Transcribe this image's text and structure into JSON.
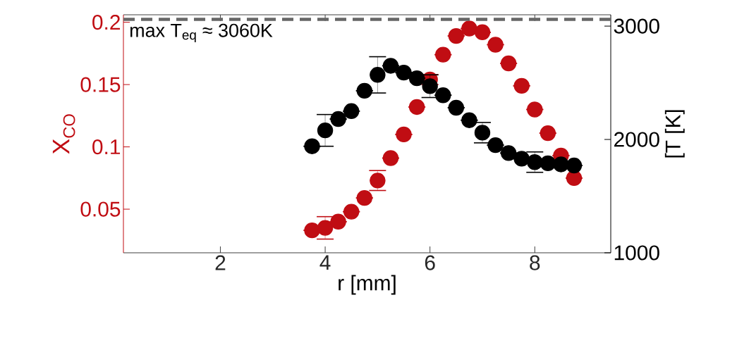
{
  "chart_data": {
    "type": "scatter",
    "xlabel": "r [mm]",
    "ylabel": "X$_{CO}$",
    "y2label": "[T [K]",
    "x": [
      3.75,
      4.0,
      4.25,
      4.5,
      4.75,
      5.0,
      5.25,
      5.5,
      5.75,
      6.0,
      6.25,
      6.5,
      6.75,
      7.0,
      7.25,
      7.5,
      7.75,
      8.0,
      8.25,
      8.5,
      8.75
    ],
    "series": [
      {
        "color": "#c00d13",
        "values": [
          0.033,
          0.035,
          0.04,
          0.048,
          0.059,
          0.073,
          0.091,
          0.11,
          0.132,
          0.154,
          0.174,
          0.189,
          0.195,
          0.192,
          0.182,
          0.167,
          0.149,
          0.13,
          0.111,
          0.093,
          0.075
        ],
        "errors": [
          null,
          0.009,
          null,
          null,
          null,
          0.008,
          null,
          null,
          null,
          0.004,
          null,
          null,
          null,
          null,
          null,
          null,
          null,
          null,
          null,
          null,
          null
        ]
      },
      {
        "color": "#000000",
        "axis": "y2",
        "values": [
          1940,
          2080,
          2180,
          2250,
          2430,
          2570,
          2650,
          2590,
          2540,
          2470,
          2390,
          2280,
          2170,
          2060,
          1950,
          1880,
          1830,
          1800,
          1790,
          1780,
          1770
        ],
        "errors": [
          null,
          140,
          null,
          null,
          null,
          160,
          null,
          null,
          null,
          100,
          null,
          null,
          null,
          90,
          null,
          null,
          null,
          90,
          null,
          null,
          null
        ]
      }
    ],
    "marker": "circle",
    "xlim": [
      0.15,
      9.45
    ],
    "xticks": [
      2,
      4,
      6,
      8
    ],
    "ylim": [
      0.015,
      0.206
    ],
    "yticks": [
      0.05,
      0.1,
      0.15,
      0.2
    ],
    "y2lim": [
      1000,
      3100
    ],
    "y2ticks": [
      1000,
      2000,
      3000
    ],
    "ref_lines": [
      {
        "axis": "y2",
        "value": 3060,
        "label": "max T$_{eq}$ ≈ 3060K",
        "color": "#666666",
        "line_style": "dashed"
      }
    ]
  }
}
